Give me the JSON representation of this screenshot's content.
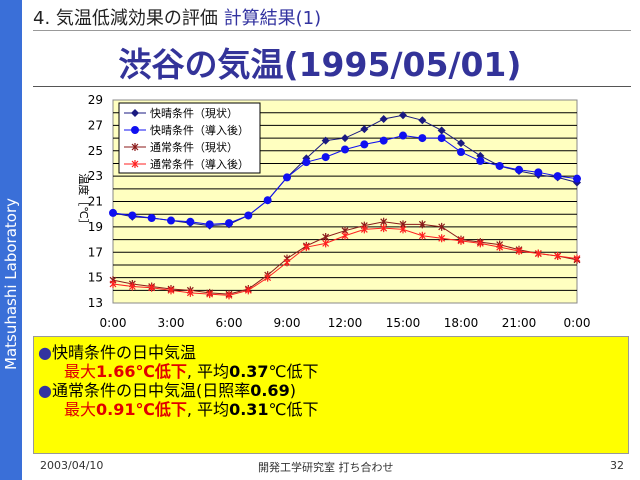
{
  "sidebar": {
    "label": "Matsuhashi Laboratory"
  },
  "header": {
    "section": "4. 気温低減効果の評価",
    "sub": "計算結果(1)"
  },
  "title": "渋谷の気温(1995/05/01)",
  "chart_data": {
    "type": "line",
    "ylabel": "温度［℃］",
    "xlabel": "",
    "ylim": [
      13,
      29
    ],
    "yticks": [
      13,
      15,
      17,
      19,
      21,
      23,
      25,
      27,
      29
    ],
    "xticks": [
      "0:00",
      "3:00",
      "6:00",
      "9:00",
      "12:00",
      "15:00",
      "18:00",
      "21:00",
      "0:00"
    ],
    "x_hours": [
      0,
      1,
      2,
      3,
      4,
      5,
      6,
      7,
      8,
      9,
      10,
      11,
      12,
      13,
      14,
      15,
      16,
      17,
      18,
      19,
      20,
      21,
      22,
      23,
      24
    ],
    "legend_position": "top-left",
    "grid": true,
    "series": [
      {
        "name": "快晴条件（現状）",
        "color": "#1a1a80",
        "marker": "diamond",
        "values": [
          20.1,
          19.8,
          19.7,
          19.5,
          19.3,
          19.1,
          19.2,
          19.9,
          21.1,
          22.9,
          24.4,
          25.8,
          26.0,
          26.7,
          27.5,
          27.8,
          27.4,
          26.6,
          25.6,
          24.6,
          23.8,
          23.4,
          23.1,
          22.9,
          22.5
        ]
      },
      {
        "name": "快晴条件（導入後）",
        "color": "#1010f0",
        "marker": "circle",
        "values": [
          20.1,
          19.9,
          19.7,
          19.5,
          19.4,
          19.2,
          19.3,
          19.9,
          21.1,
          22.9,
          24.1,
          24.5,
          25.1,
          25.5,
          25.8,
          26.2,
          26.0,
          26.0,
          24.9,
          24.2,
          23.8,
          23.5,
          23.3,
          23.0,
          22.8
        ]
      },
      {
        "name": "通常条件（現状）",
        "color": "#8b1a1a",
        "marker": "x",
        "values": [
          14.8,
          14.5,
          14.3,
          14.1,
          14.0,
          13.8,
          13.7,
          14.1,
          15.2,
          16.5,
          17.5,
          18.2,
          18.7,
          19.1,
          19.4,
          19.2,
          19.2,
          19.0,
          18.0,
          17.8,
          17.6,
          17.2,
          16.9,
          16.7,
          16.4
        ]
      },
      {
        "name": "通常条件（導入後）",
        "color": "#ff2020",
        "marker": "x",
        "values": [
          14.5,
          14.3,
          14.2,
          14.0,
          13.8,
          13.7,
          13.6,
          14.0,
          15.0,
          16.2,
          17.4,
          17.7,
          18.3,
          18.8,
          18.9,
          18.8,
          18.3,
          18.1,
          17.9,
          17.7,
          17.4,
          17.1,
          16.9,
          16.7,
          16.5
        ]
      }
    ]
  },
  "summary": {
    "l1": "快晴条件の日中気温",
    "l2a": "最大",
    "l2b": "1.66℃低下",
    "l2c": ", 平均",
    "l2d": "0.37",
    "l2e": "℃低下",
    "l3": "通常条件の日中気温(日照率",
    "l3b": "0.69",
    "l3c": ")",
    "l4a": "最大",
    "l4b": "0.91℃低下",
    "l4c": ", 平均",
    "l4d": "0.31",
    "l4e": "℃低下"
  },
  "footer": {
    "date": "2003/04/10",
    "org": "開発工学研究室 打ち合わせ",
    "page": "32"
  }
}
